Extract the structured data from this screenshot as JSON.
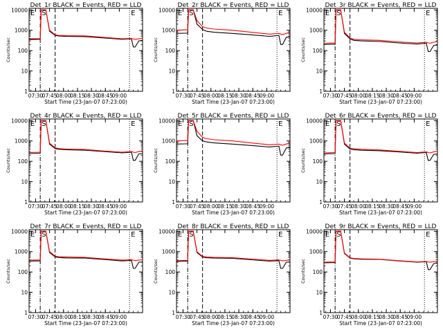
{
  "page": {
    "background": "#ffffff"
  },
  "colors": {
    "events": "#000000",
    "lld": "#ff0000",
    "axes": "#000000"
  },
  "common": {
    "xlabel": "Start Time (23-Jan-07 07:23:00)",
    "ylabel": "Counts/sec",
    "x_tick_labels": [
      "07:30",
      "07:45",
      "08:00",
      "08:15",
      "08:30",
      "08:45",
      "09:00"
    ],
    "y_tick_labels": [
      "1",
      "10",
      "100",
      "1000",
      "10000"
    ],
    "markers": [
      "E",
      "S",
      "E"
    ]
  },
  "chart_data": [
    {
      "type": "line",
      "title": "Det_1r BLACK = Events, RED = LLD",
      "xlabel": "Start Time (23-Jan-07 07:23:00)",
      "ylabel": "Counts/sec",
      "x_ticks": [
        "07:30",
        "07:45",
        "08:00",
        "08:15",
        "08:30",
        "08:45",
        "09:00"
      ],
      "y_ticks": [
        "1",
        "10",
        "100",
        "1000",
        "10000"
      ],
      "y_scale": "log",
      "ylim": [
        1,
        12000
      ],
      "markers": [
        "E",
        "S",
        "E"
      ],
      "series": [
        {
          "name": "Events",
          "color": "#000000",
          "x": [
            0,
            12,
            13,
            18,
            22,
            28,
            32,
            40,
            60,
            80,
            100,
            110,
            112,
            114,
            118,
            122
          ],
          "y": [
            350,
            360,
            10000,
            10000,
            900,
            560,
            520,
            500,
            490,
            420,
            360,
            380,
            150,
            150,
            300,
            320
          ]
        },
        {
          "name": "LLD",
          "color": "#ff0000",
          "x": [
            0,
            12,
            13,
            18,
            22,
            28,
            32,
            40,
            60,
            80,
            100,
            110,
            112,
            114,
            118,
            122
          ],
          "y": [
            380,
            390,
            10000,
            10000,
            1000,
            600,
            560,
            540,
            530,
            450,
            380,
            400,
            380,
            360,
            380,
            400
          ]
        }
      ]
    },
    {
      "type": "line",
      "title": "Det_2r BLACK = Events, RED = LLD",
      "xlabel": "Start Time (23-Jan-07 07:23:00)",
      "ylabel": "Counts/sec",
      "x_ticks": [
        "07:30",
        "07:45",
        "08:00",
        "08:15",
        "08:30",
        "08:45",
        "09:00"
      ],
      "y_ticks": [
        "1",
        "10",
        "100",
        "1000",
        "10000"
      ],
      "y_scale": "log",
      "ylim": [
        1,
        12000
      ],
      "markers": [
        "E",
        "S",
        "E"
      ],
      "series": [
        {
          "name": "Events",
          "color": "#000000",
          "x": [
            0,
            12,
            13,
            18,
            22,
            28,
            32,
            40,
            60,
            80,
            100,
            110,
            112,
            114,
            118,
            122
          ],
          "y": [
            700,
            720,
            10000,
            10000,
            2000,
            1100,
            900,
            800,
            700,
            600,
            500,
            560,
            200,
            200,
            450,
            480
          ]
        },
        {
          "name": "LLD",
          "color": "#ff0000",
          "x": [
            0,
            12,
            13,
            18,
            22,
            28,
            32,
            40,
            60,
            80,
            100,
            110,
            112,
            114,
            118,
            122
          ],
          "y": [
            1000,
            1050,
            10000,
            10000,
            3000,
            1500,
            1300,
            1150,
            1000,
            800,
            650,
            700,
            650,
            620,
            700,
            800
          ]
        }
      ]
    },
    {
      "type": "line",
      "title": "Det_3r BLACK = Events, RED = LLD",
      "xlabel": "Start Time (23-Jan-07 07:23:00)",
      "ylabel": "Counts/sec",
      "x_ticks": [
        "07:30",
        "07:45",
        "08:00",
        "08:15",
        "08:30",
        "08:45",
        "09:00"
      ],
      "y_ticks": [
        "1",
        "10",
        "100",
        "1000",
        "10000"
      ],
      "y_scale": "log",
      "ylim": [
        1,
        12000
      ],
      "markers": [
        "E",
        "S",
        "E"
      ],
      "series": [
        {
          "name": "Events",
          "color": "#000000",
          "x": [
            0,
            12,
            13,
            18,
            22,
            28,
            32,
            40,
            60,
            80,
            100,
            110,
            112,
            114,
            118,
            122
          ],
          "y": [
            200,
            210,
            10000,
            10000,
            700,
            380,
            320,
            300,
            280,
            240,
            210,
            230,
            90,
            90,
            180,
            190
          ]
        },
        {
          "name": "LLD",
          "color": "#ff0000",
          "x": [
            0,
            12,
            13,
            18,
            22,
            28,
            32,
            40,
            60,
            80,
            100,
            110,
            112,
            114,
            118,
            122
          ],
          "y": [
            230,
            240,
            10000,
            10000,
            800,
            420,
            360,
            340,
            320,
            270,
            240,
            260,
            240,
            230,
            260,
            280
          ]
        }
      ]
    },
    {
      "type": "line",
      "title": "Det_4r BLACK = Events, RED = LLD",
      "xlabel": "Start Time (23-Jan-07 07:23:00)",
      "ylabel": "Counts/sec",
      "x_ticks": [
        "07:30",
        "07:45",
        "08:00",
        "08:15",
        "08:30",
        "08:45",
        "09:00"
      ],
      "y_ticks": [
        "1",
        "10",
        "100",
        "1000",
        "10000"
      ],
      "y_scale": "log",
      "ylim": [
        1,
        12000
      ],
      "markers": [
        "E",
        "S",
        "E"
      ],
      "series": [
        {
          "name": "Events",
          "color": "#000000",
          "x": [
            0,
            12,
            13,
            18,
            22,
            28,
            32,
            40,
            60,
            80,
            100,
            110,
            112,
            114,
            118,
            122
          ],
          "y": [
            240,
            250,
            10000,
            10000,
            700,
            420,
            390,
            370,
            350,
            300,
            260,
            280,
            110,
            110,
            230,
            240
          ]
        },
        {
          "name": "LLD",
          "color": "#ff0000",
          "x": [
            0,
            12,
            13,
            18,
            22,
            28,
            32,
            40,
            60,
            80,
            100,
            110,
            112,
            114,
            118,
            122
          ],
          "y": [
            270,
            280,
            10000,
            10000,
            780,
            460,
            420,
            400,
            380,
            320,
            280,
            300,
            280,
            270,
            300,
            320
          ]
        }
      ]
    },
    {
      "type": "line",
      "title": "Det_5r BLACK = Events, RED = LLD",
      "xlabel": "Start Time (23-Jan-07 07:23:00)",
      "ylabel": "Counts/sec",
      "x_ticks": [
        "07:30",
        "07:45",
        "08:00",
        "08:15",
        "08:30",
        "08:45",
        "09:00"
      ],
      "y_ticks": [
        "1",
        "10",
        "100",
        "1000",
        "10000"
      ],
      "y_scale": "log",
      "ylim": [
        1,
        12000
      ],
      "markers": [
        "E",
        "S",
        "E"
      ],
      "series": [
        {
          "name": "Events",
          "color": "#000000",
          "x": [
            0,
            12,
            13,
            18,
            22,
            28,
            32,
            40,
            60,
            80,
            100,
            110,
            112,
            114,
            118,
            122
          ],
          "y": [
            700,
            720,
            10000,
            10000,
            1800,
            1000,
            900,
            800,
            700,
            600,
            500,
            560,
            200,
            200,
            450,
            480
          ]
        },
        {
          "name": "LLD",
          "color": "#ff0000",
          "x": [
            0,
            12,
            13,
            18,
            22,
            28,
            32,
            40,
            60,
            80,
            100,
            110,
            112,
            114,
            118,
            122
          ],
          "y": [
            1000,
            1050,
            10000,
            10000,
            3000,
            1500,
            1300,
            1150,
            1000,
            800,
            650,
            700,
            650,
            620,
            700,
            800
          ]
        }
      ]
    },
    {
      "type": "line",
      "title": "Det_6r BLACK = Events, RED = LLD",
      "xlabel": "Start Time (23-Jan-07 07:23:00)",
      "ylabel": "Counts/sec",
      "x_ticks": [
        "07:30",
        "07:45",
        "08:00",
        "08:15",
        "08:30",
        "08:45",
        "09:00"
      ],
      "y_ticks": [
        "1",
        "10",
        "100",
        "1000",
        "10000"
      ],
      "y_scale": "log",
      "ylim": [
        1,
        12000
      ],
      "markers": [
        "E",
        "S",
        "E"
      ],
      "series": [
        {
          "name": "Events",
          "color": "#000000",
          "x": [
            0,
            12,
            13,
            18,
            22,
            28,
            32,
            40,
            60,
            80,
            100,
            110,
            112,
            114,
            118,
            122
          ],
          "y": [
            230,
            240,
            10000,
            10000,
            700,
            400,
            370,
            350,
            330,
            290,
            250,
            270,
            110,
            110,
            220,
            230
          ]
        },
        {
          "name": "LLD",
          "color": "#ff0000",
          "x": [
            0,
            12,
            13,
            18,
            22,
            28,
            32,
            40,
            60,
            80,
            100,
            110,
            112,
            114,
            118,
            122
          ],
          "y": [
            260,
            270,
            10000,
            10000,
            780,
            440,
            410,
            390,
            360,
            310,
            270,
            290,
            270,
            260,
            290,
            310
          ]
        }
      ]
    },
    {
      "type": "line",
      "title": "Det_7r BLACK = Events, RED = LLD",
      "xlabel": "Start Time (23-Jan-07 07:23:00)",
      "ylabel": "Counts/sec",
      "x_ticks": [
        "07:30",
        "07:45",
        "08:00",
        "08:15",
        "08:30",
        "08:45",
        "09:00"
      ],
      "y_ticks": [
        "1",
        "10",
        "100",
        "1000",
        "10000"
      ],
      "y_scale": "log",
      "ylim": [
        1,
        12000
      ],
      "markers": [
        "E",
        "S",
        "E"
      ],
      "series": [
        {
          "name": "Events",
          "color": "#000000",
          "x": [
            0,
            12,
            13,
            18,
            22,
            28,
            32,
            40,
            60,
            80,
            100,
            110,
            112,
            114,
            118,
            122
          ],
          "y": [
            340,
            350,
            10000,
            10000,
            900,
            550,
            510,
            490,
            480,
            410,
            350,
            370,
            150,
            150,
            300,
            310
          ]
        },
        {
          "name": "LLD",
          "color": "#ff0000",
          "x": [
            0,
            12,
            13,
            18,
            22,
            28,
            32,
            40,
            60,
            80,
            100,
            110,
            112,
            114,
            118,
            122
          ],
          "y": [
            380,
            390,
            10000,
            10000,
            1000,
            600,
            560,
            540,
            520,
            440,
            380,
            400,
            380,
            360,
            380,
            400
          ]
        }
      ]
    },
    {
      "type": "line",
      "title": "Det_8r BLACK = Events, RED = LLD",
      "xlabel": "Start Time (23-Jan-07 07:23:00)",
      "ylabel": "Counts/sec",
      "x_ticks": [
        "07:30",
        "07:45",
        "08:00",
        "08:15",
        "08:30",
        "08:45",
        "09:00"
      ],
      "y_ticks": [
        "1",
        "10",
        "100",
        "1000",
        "10000"
      ],
      "y_scale": "log",
      "ylim": [
        1,
        12000
      ],
      "markers": [
        "E",
        "S",
        "E"
      ],
      "series": [
        {
          "name": "Events",
          "color": "#000000",
          "x": [
            0,
            12,
            13,
            18,
            22,
            28,
            32,
            40,
            60,
            80,
            100,
            110,
            112,
            114,
            118,
            122
          ],
          "y": [
            330,
            340,
            10000,
            10000,
            900,
            540,
            500,
            480,
            470,
            400,
            340,
            360,
            150,
            150,
            300,
            310
          ]
        },
        {
          "name": "LLD",
          "color": "#ff0000",
          "x": [
            0,
            12,
            13,
            18,
            22,
            28,
            32,
            40,
            60,
            80,
            100,
            110,
            112,
            114,
            118,
            122
          ],
          "y": [
            360,
            370,
            10000,
            10000,
            980,
            580,
            540,
            520,
            500,
            430,
            370,
            390,
            370,
            350,
            370,
            390
          ]
        }
      ]
    },
    {
      "type": "line",
      "title": "Det_9r BLACK = Events, RED = LLD",
      "xlabel": "Start Time (23-Jan-07 07:23:00)",
      "ylabel": "Counts/sec",
      "x_ticks": [
        "07:30",
        "07:45",
        "08:00",
        "08:15",
        "08:30",
        "08:45",
        "09:00"
      ],
      "y_ticks": [
        "1",
        "10",
        "100",
        "1000",
        "10000"
      ],
      "y_scale": "log",
      "ylim": [
        1,
        12000
      ],
      "markers": [
        "E",
        "S",
        "E"
      ],
      "series": [
        {
          "name": "Events",
          "color": "#000000",
          "x": [
            0,
            12,
            13,
            18,
            22,
            28,
            32,
            40,
            60,
            80,
            100,
            110,
            112,
            114,
            118,
            122
          ],
          "y": [
            280,
            290,
            10000,
            10000,
            800,
            480,
            440,
            420,
            410,
            350,
            300,
            320,
            130,
            130,
            260,
            270
          ]
        },
        {
          "name": "LLD",
          "color": "#ff0000",
          "x": [
            0,
            12,
            13,
            18,
            22,
            28,
            32,
            40,
            60,
            80,
            100,
            110,
            112,
            114,
            118,
            122
          ],
          "y": [
            300,
            310,
            10000,
            10000,
            850,
            500,
            460,
            440,
            420,
            360,
            310,
            330,
            310,
            300,
            320,
            340
          ]
        }
      ]
    }
  ]
}
